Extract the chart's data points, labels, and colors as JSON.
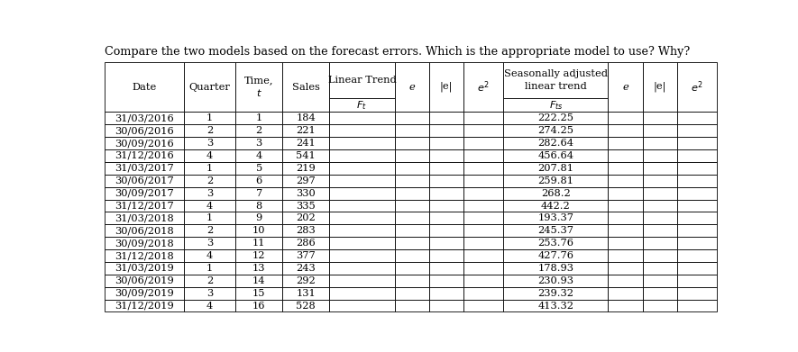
{
  "title": "Compare the two models based on the forecast errors. Which is the appropriate model to use? Why?",
  "rows": [
    [
      "31/03/2016",
      "1",
      "1",
      "184",
      "",
      "",
      "",
      "",
      "222.25",
      "",
      "",
      ""
    ],
    [
      "30/06/2016",
      "2",
      "2",
      "221",
      "",
      "",
      "",
      "",
      "274.25",
      "",
      "",
      ""
    ],
    [
      "30/09/2016",
      "3",
      "3",
      "241",
      "",
      "",
      "",
      "",
      "282.64",
      "",
      "",
      ""
    ],
    [
      "31/12/2016",
      "4",
      "4",
      "541",
      "",
      "",
      "",
      "",
      "456.64",
      "",
      "",
      ""
    ],
    [
      "31/03/2017",
      "1",
      "5",
      "219",
      "",
      "",
      "",
      "",
      "207.81",
      "",
      "",
      ""
    ],
    [
      "30/06/2017",
      "2",
      "6",
      "297",
      "",
      "",
      "",
      "",
      "259.81",
      "",
      "",
      ""
    ],
    [
      "30/09/2017",
      "3",
      "7",
      "330",
      "",
      "",
      "",
      "",
      "268.2",
      "",
      "",
      ""
    ],
    [
      "31/12/2017",
      "4",
      "8",
      "335",
      "",
      "",
      "",
      "",
      "442.2",
      "",
      "",
      ""
    ],
    [
      "31/03/2018",
      "1",
      "9",
      "202",
      "",
      "",
      "",
      "",
      "193.37",
      "",
      "",
      ""
    ],
    [
      "30/06/2018",
      "2",
      "10",
      "283",
      "",
      "",
      "",
      "",
      "245.37",
      "",
      "",
      ""
    ],
    [
      "30/09/2018",
      "3",
      "11",
      "286",
      "",
      "",
      "",
      "",
      "253.76",
      "",
      "",
      ""
    ],
    [
      "31/12/2018",
      "4",
      "12",
      "377",
      "",
      "",
      "",
      "",
      "427.76",
      "",
      "",
      ""
    ],
    [
      "31/03/2019",
      "1",
      "13",
      "243",
      "",
      "",
      "",
      "",
      "178.93",
      "",
      "",
      ""
    ],
    [
      "30/06/2019",
      "2",
      "14",
      "292",
      "",
      "",
      "",
      "",
      "230.93",
      "",
      "",
      ""
    ],
    [
      "30/09/2019",
      "3",
      "15",
      "131",
      "",
      "",
      "",
      "",
      "239.32",
      "",
      "",
      ""
    ],
    [
      "31/12/2019",
      "4",
      "16",
      "528",
      "",
      "",
      "",
      "",
      "413.32",
      "",
      "",
      ""
    ]
  ],
  "col_widths_rel": [
    1.15,
    0.75,
    0.68,
    0.68,
    0.95,
    0.5,
    0.5,
    0.58,
    1.52,
    0.5,
    0.5,
    0.58
  ],
  "background_color": "#ffffff",
  "grid_color": "#000000",
  "title_fontsize": 9.2,
  "header_fontsize": 8.2,
  "data_fontsize": 8.2
}
